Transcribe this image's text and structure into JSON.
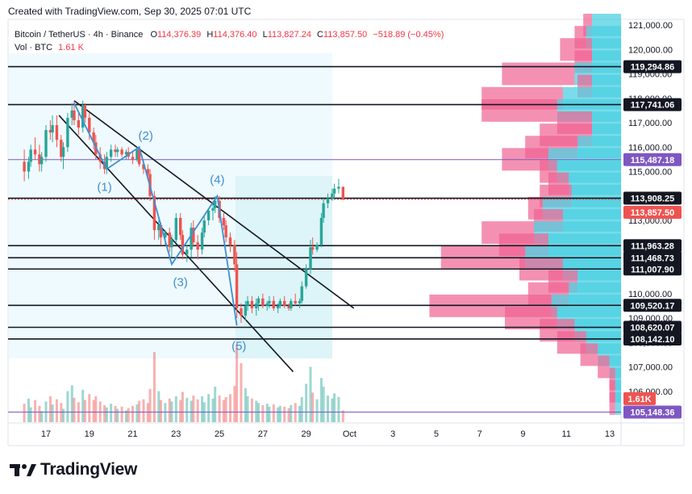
{
  "header": {
    "created": "Created with TradingView.com, Sep 30, 2025 07:01 UTC",
    "symbol": "Bitcoin / TetherUS · 4h · Binance",
    "o_label": "O",
    "o_val": "114,376.39",
    "h_label": "H",
    "h_val": "114,376.40",
    "l_label": "L",
    "l_val": "113,827.24",
    "c_label": "C",
    "c_val": "113,857.50",
    "change": "−518.89 (−0.45%)",
    "vol_label": "Vol · BTC",
    "vol_val": "1.61 K"
  },
  "brand": {
    "logo_text": "TradingView"
  },
  "colors": {
    "up": "#26a69a",
    "down": "#ef5350",
    "vp_up": "#4dd0e1",
    "vp_down": "#f06292",
    "line": "#131722",
    "purple": "#7e57c2",
    "wave": "#3d8fd1"
  },
  "chart_data": {
    "type": "candlestick",
    "symbol": "BTCUSDT",
    "timeframe": "4h",
    "ylim": [
      104500,
      121500
    ],
    "y_ticks": [
      106000,
      107000,
      108000,
      109000,
      110000,
      111000,
      112000,
      113000,
      114000,
      115000,
      116000,
      117000,
      118000,
      119000,
      120000,
      121000
    ],
    "y_tick_labels": [
      "106,000.00",
      "107,000.00",
      "108,000.00",
      "109,000.00",
      "110,000.00",
      "111,000.00",
      "112,000.00",
      "113,000.00",
      "114,000.00",
      "115,000.00",
      "116,000.00",
      "117,000.00",
      "118,000.00",
      "119,000.00",
      "120,000.00",
      "121,000.00"
    ],
    "x_ticks": [
      "17",
      "19",
      "21",
      "23",
      "25",
      "27",
      "29",
      "Oct",
      "3",
      "5",
      "7",
      "9",
      "11",
      "13"
    ],
    "x_tick_days": [
      17,
      19,
      21,
      23,
      25,
      27,
      29,
      31,
      33,
      35,
      37,
      39,
      41,
      43
    ],
    "candles": [
      [
        16.0,
        115400,
        115900,
        114600,
        115000
      ],
      [
        16.2,
        115000,
        115600,
        114700,
        115400
      ],
      [
        16.3,
        115400,
        116100,
        115200,
        115900
      ],
      [
        16.5,
        115900,
        116400,
        115500,
        115700
      ],
      [
        16.7,
        115700,
        116100,
        115000,
        115300
      ],
      [
        16.8,
        115300,
        115800,
        115000,
        115600
      ],
      [
        17.0,
        115600,
        116900,
        115400,
        116700
      ],
      [
        17.2,
        116700,
        117100,
        116300,
        116600
      ],
      [
        17.3,
        116600,
        117300,
        116200,
        116900
      ],
      [
        17.5,
        116900,
        117300,
        116000,
        116300
      ],
      [
        17.7,
        116300,
        116500,
        115400,
        115600
      ],
      [
        17.8,
        115600,
        116200,
        115100,
        116000
      ],
      [
        18.0,
        116000,
        117400,
        115800,
        117200
      ],
      [
        18.2,
        117200,
        117800,
        116900,
        117500
      ],
      [
        18.3,
        117500,
        117900,
        116900,
        117100
      ],
      [
        18.5,
        117100,
        117400,
        116500,
        116800
      ],
      [
        18.7,
        116800,
        117900,
        116600,
        117700
      ],
      [
        18.8,
        117700,
        117800,
        117000,
        117200
      ],
      [
        19.0,
        117200,
        117400,
        116300,
        116600
      ],
      [
        19.2,
        116600,
        116800,
        115900,
        116200
      ],
      [
        19.3,
        116200,
        116500,
        115500,
        115700
      ],
      [
        19.5,
        115700,
        116000,
        115100,
        115400
      ],
      [
        19.7,
        115400,
        115700,
        114900,
        115100
      ],
      [
        19.8,
        115100,
        115800,
        114900,
        115600
      ],
      [
        20.0,
        115600,
        116100,
        115400,
        115900
      ],
      [
        20.2,
        115900,
        116100,
        115600,
        115800
      ],
      [
        20.3,
        115800,
        116000,
        115600,
        115900
      ],
      [
        20.5,
        115900,
        116000,
        115600,
        115700
      ],
      [
        20.7,
        115700,
        115900,
        115500,
        115800
      ],
      [
        20.8,
        115800,
        116000,
        115500,
        115600
      ],
      [
        21.0,
        115600,
        115800,
        115300,
        115500
      ],
      [
        21.2,
        115500,
        116000,
        115400,
        115900
      ],
      [
        21.3,
        115900,
        116000,
        115200,
        115300
      ],
      [
        21.5,
        115300,
        115500,
        114900,
        115100
      ],
      [
        21.7,
        115100,
        115300,
        114700,
        114900
      ],
      [
        21.8,
        114900,
        115100,
        113800,
        114000
      ],
      [
        22.0,
        114000,
        114200,
        112200,
        112600
      ],
      [
        22.2,
        112600,
        113000,
        112200,
        112800
      ],
      [
        22.3,
        112800,
        112900,
        112000,
        112300
      ],
      [
        22.5,
        112300,
        112600,
        112000,
        112500
      ],
      [
        22.7,
        112500,
        112700,
        111700,
        111900
      ],
      [
        22.8,
        111900,
        112400,
        111500,
        112200
      ],
      [
        23.0,
        112200,
        113300,
        112100,
        113100
      ],
      [
        23.2,
        113100,
        113300,
        112200,
        112400
      ],
      [
        23.3,
        112400,
        112600,
        111400,
        111600
      ],
      [
        23.5,
        111600,
        112000,
        111300,
        111800
      ],
      [
        23.7,
        111800,
        112900,
        111500,
        112700
      ],
      [
        23.8,
        112700,
        113000,
        111900,
        112100
      ],
      [
        24.0,
        112100,
        112400,
        111400,
        111800
      ],
      [
        24.2,
        111800,
        112700,
        111600,
        112500
      ],
      [
        24.3,
        112500,
        113200,
        112300,
        113000
      ],
      [
        24.5,
        113000,
        113500,
        112800,
        113400
      ],
      [
        24.7,
        113400,
        113700,
        113000,
        113500
      ],
      [
        24.8,
        113500,
        114000,
        113300,
        113800
      ],
      [
        25.0,
        113800,
        114000,
        112900,
        113100
      ],
      [
        25.2,
        113100,
        113300,
        112600,
        112800
      ],
      [
        25.3,
        112800,
        113000,
        112100,
        112300
      ],
      [
        25.5,
        112300,
        112500,
        111700,
        112000
      ],
      [
        25.7,
        112000,
        112200,
        110900,
        111200
      ],
      [
        25.8,
        111200,
        111700,
        109000,
        109400
      ],
      [
        26.0,
        109400,
        109600,
        108800,
        109100
      ],
      [
        26.2,
        109100,
        109700,
        108900,
        109500
      ],
      [
        26.3,
        109500,
        109900,
        109300,
        109700
      ],
      [
        26.5,
        109700,
        109900,
        109200,
        109400
      ],
      [
        26.7,
        109400,
        109800,
        109100,
        109600
      ],
      [
        26.8,
        109600,
        109900,
        109300,
        109800
      ],
      [
        27.0,
        109800,
        110000,
        109400,
        109500
      ],
      [
        27.2,
        109500,
        109700,
        109300,
        109600
      ],
      [
        27.3,
        109600,
        109900,
        109400,
        109700
      ],
      [
        27.5,
        109700,
        109900,
        109300,
        109400
      ],
      [
        27.7,
        109400,
        109600,
        109200,
        109500
      ],
      [
        27.8,
        109500,
        109800,
        109400,
        109700
      ],
      [
        28.0,
        109700,
        109900,
        109400,
        109500
      ],
      [
        28.2,
        109500,
        109600,
        109300,
        109400
      ],
      [
        28.3,
        109400,
        109800,
        109300,
        109700
      ],
      [
        28.5,
        109700,
        110000,
        109500,
        109600
      ],
      [
        28.7,
        109600,
        109800,
        109400,
        109700
      ],
      [
        28.8,
        109700,
        110500,
        109600,
        110300
      ],
      [
        29.0,
        110300,
        111200,
        110200,
        111000
      ],
      [
        29.2,
        111000,
        112200,
        110800,
        111900
      ],
      [
        29.3,
        111900,
        112300,
        111600,
        111800
      ],
      [
        29.5,
        111800,
        112100,
        111700,
        112000
      ],
      [
        29.7,
        112000,
        113300,
        111900,
        113100
      ],
      [
        29.8,
        113100,
        113900,
        112900,
        113700
      ],
      [
        30.0,
        113700,
        114100,
        113500,
        113900
      ],
      [
        30.2,
        113900,
        114300,
        113800,
        114100
      ],
      [
        30.3,
        114100,
        114500,
        113900,
        114300
      ],
      [
        30.5,
        114300,
        114700,
        114100,
        114376
      ],
      [
        30.7,
        114376,
        114376,
        113827,
        113857
      ]
    ],
    "volume_ylim": [
      0,
      14
    ],
    "volumes": [
      2.5,
      3.2,
      2.0,
      3.0,
      2.2,
      1.5,
      2.8,
      3.5,
      2.4,
      3.1,
      2.6,
      1.8,
      4.2,
      5.0,
      3.3,
      2.7,
      4.4,
      3.0,
      3.8,
      3.0,
      3.5,
      2.8,
      2.3,
      2.0,
      2.5,
      2.2,
      1.8,
      2.1,
      1.6,
      1.9,
      2.2,
      2.4,
      2.9,
      3.1,
      2.6,
      4.5,
      9.5,
      4.2,
      3.0,
      2.6,
      3.2,
      2.8,
      3.5,
      3.0,
      4.1,
      3.3,
      2.9,
      3.6,
      3.1,
      3.5,
      2.7,
      3.8,
      3.2,
      4.8,
      3.6,
      3.0,
      3.4,
      3.8,
      4.9,
      10.5,
      8.0,
      4.6,
      3.5,
      3.2,
      2.9,
      2.6,
      2.3,
      2.5,
      2.1,
      2.4,
      2.0,
      2.2,
      2.1,
      1.9,
      2.3,
      2.6,
      2.2,
      3.4,
      5.2,
      7.5,
      4.0,
      3.1,
      6.0,
      4.8,
      3.6,
      3.2,
      3.9,
      3.4,
      1.6
    ],
    "horizontal_levels": [
      {
        "price": 119294.86,
        "label": "119,294.86",
        "style": "black"
      },
      {
        "price": 117741.06,
        "label": "117,741.06",
        "style": "black"
      },
      {
        "price": 115487.18,
        "label": "115,487.18",
        "style": "purple"
      },
      {
        "price": 113908.25,
        "label": "113,908.25",
        "style": "black"
      },
      {
        "price": 111963.28,
        "label": "111,963.28",
        "style": "black"
      },
      {
        "price": 111468.73,
        "label": "111,468.73",
        "style": "black"
      },
      {
        "price": 111007.9,
        "label": "111,007.90",
        "style": "black"
      },
      {
        "price": 109520.17,
        "label": "109,520.17",
        "style": "black"
      },
      {
        "price": 108620.07,
        "label": "108,620.07",
        "style": "black"
      },
      {
        "price": 108142.1,
        "label": "108,142.10",
        "style": "black"
      },
      {
        "price": 105148.36,
        "label": "105,148.36",
        "style": "purple"
      }
    ],
    "last_price": {
      "price": 113857.5,
      "label": "113,857.50"
    },
    "volume_label": {
      "value": "1.61K"
    },
    "wave_labels": [
      {
        "text": "(1)",
        "day": 19.7,
        "price": 114200
      },
      {
        "text": "(2)",
        "day": 21.6,
        "price": 116300
      },
      {
        "text": "(3)",
        "day": 23.2,
        "price": 110300
      },
      {
        "text": "(4)",
        "day": 24.9,
        "price": 114500
      },
      {
        "text": "(5)",
        "day": 25.9,
        "price": 107700
      }
    ],
    "wave_path": [
      [
        18.3,
        117800
      ],
      [
        19.8,
        115100
      ],
      [
        21.3,
        116000
      ],
      [
        22.8,
        111200
      ],
      [
        24.9,
        114000
      ],
      [
        25.8,
        108700
      ]
    ],
    "trendlines": [
      {
        "from": [
          18.3,
          117900
        ],
        "to": [
          31.2,
          109400
        ]
      },
      {
        "from": [
          17.6,
          117300
        ],
        "to": [
          28.4,
          106800
        ]
      }
    ],
    "volume_profile": [
      {
        "price": 121000,
        "up": 0.1,
        "down": 0.03
      },
      {
        "price": 120500,
        "up": 0.12,
        "down": 0.04
      },
      {
        "price": 120000,
        "up": 0.1,
        "down": 0.11
      },
      {
        "price": 119500,
        "up": 0.1,
        "down": 0.06
      },
      {
        "price": 119000,
        "up": 0.16,
        "down": 0.25
      },
      {
        "price": 118500,
        "up": 0.1,
        "down": 0.05
      },
      {
        "price": 118000,
        "up": 0.2,
        "down": 0.28
      },
      {
        "price": 117500,
        "up": 0.22,
        "down": 0.26
      },
      {
        "price": 117000,
        "up": 0.1,
        "down": 0.12
      },
      {
        "price": 116500,
        "up": 0.1,
        "down": 0.18
      },
      {
        "price": 116000,
        "up": 0.15,
        "down": 0.18
      },
      {
        "price": 115500,
        "up": 0.25,
        "down": 0.16
      },
      {
        "price": 115000,
        "up": 0.22,
        "down": 0.06
      },
      {
        "price": 114500,
        "up": 0.18,
        "down": 0.07
      },
      {
        "price": 114000,
        "up": 0.17,
        "down": 0.11
      },
      {
        "price": 113500,
        "up": 0.27,
        "down": 0.05
      },
      {
        "price": 113000,
        "up": 0.2,
        "down": 0.1
      },
      {
        "price": 112500,
        "up": 0.3,
        "down": 0.18
      },
      {
        "price": 112000,
        "up": 0.25,
        "down": 0.17
      },
      {
        "price": 111500,
        "up": 0.33,
        "down": 0.29
      },
      {
        "price": 111000,
        "up": 0.2,
        "down": 0.15
      },
      {
        "price": 110500,
        "up": 0.15,
        "down": 0.1
      },
      {
        "price": 110000,
        "up": 0.18,
        "down": 0.14
      },
      {
        "price": 109500,
        "up": 0.24,
        "down": 0.42
      },
      {
        "price": 109000,
        "up": 0.22,
        "down": 0.18
      },
      {
        "price": 108500,
        "up": 0.16,
        "down": 0.12
      },
      {
        "price": 108000,
        "up": 0.12,
        "down": 0.1
      },
      {
        "price": 107500,
        "up": 0.08,
        "down": 0.06
      },
      {
        "price": 107000,
        "up": 0.04,
        "down": 0.04
      },
      {
        "price": 106500,
        "up": 0.02,
        "down": 0.02
      },
      {
        "price": 106000,
        "up": 0.02,
        "down": 0.02
      },
      {
        "price": 105500,
        "up": 0.02,
        "down": 0.02
      }
    ]
  }
}
